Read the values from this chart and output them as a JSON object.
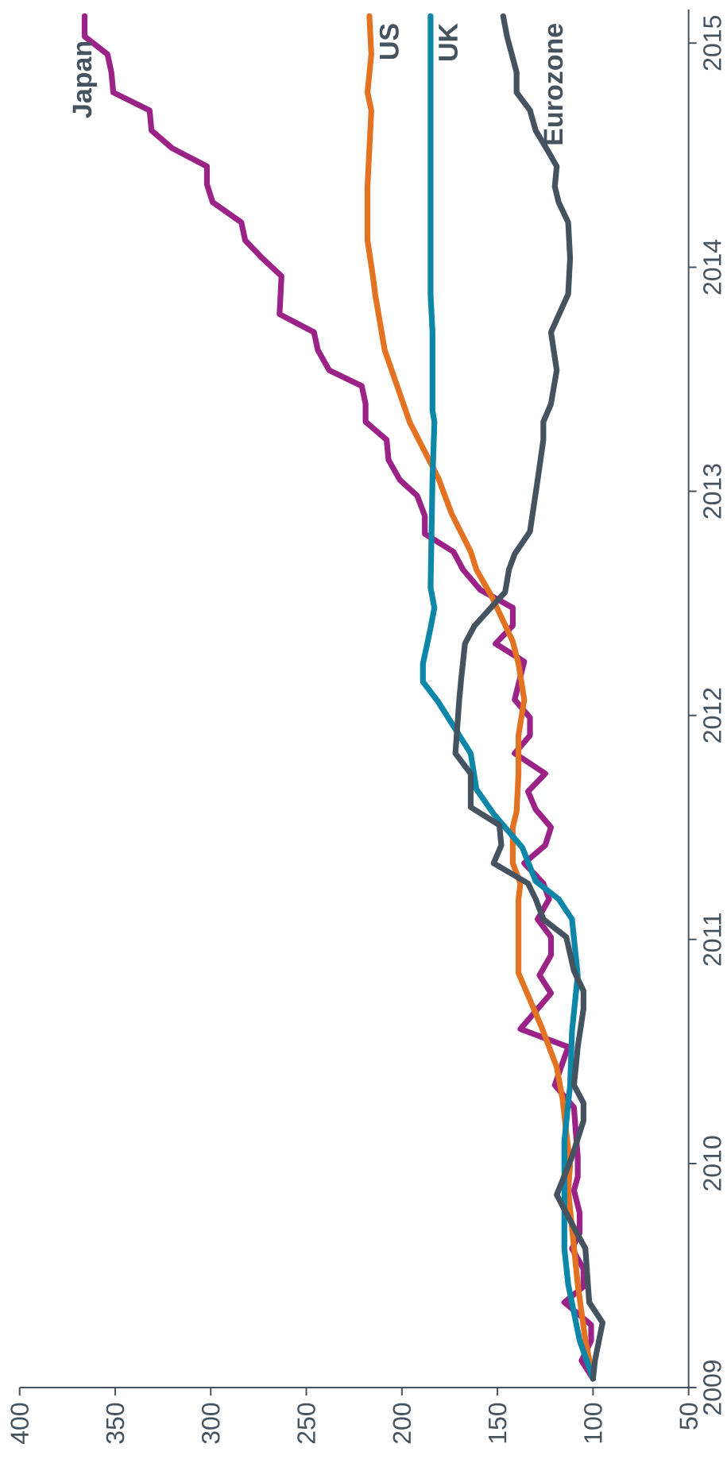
{
  "chart_data": {
    "type": "line",
    "xlim": [
      400,
      50
    ],
    "xticks": [
      400,
      350,
      300,
      250,
      200,
      150,
      100,
      50
    ],
    "ylim": [
      2009,
      2015.15
    ],
    "yticks": [
      2009,
      2010,
      2011,
      2012,
      2013,
      2014,
      2015
    ],
    "series": [
      {
        "name": "Japan",
        "color": "#9b2387",
        "values": [
          2009.04,
          2009.12,
          2009.21,
          2009.28,
          2009.38,
          2009.45,
          2009.53,
          2009.62,
          2009.69,
          2009.78,
          2009.88,
          2009.94,
          2010.03,
          2010.25,
          2010.35,
          2010.52,
          2010.6,
          2010.76,
          2010.84,
          2010.93,
          2011.01,
          2011.09,
          2011.18,
          2011.25,
          2011.34,
          2011.42,
          2011.5,
          2011.58,
          2011.66,
          2011.74,
          2011.83,
          2011.91,
          2011.99,
          2012.07,
          2012.24,
          2012.32,
          2012.4,
          2012.48,
          2012.56,
          2012.65,
          2012.73,
          2012.81,
          2012.89,
          2012.98,
          2013.05,
          2013.14,
          2013.23,
          2013.31,
          2013.39,
          2013.47,
          2013.54,
          2013.63,
          2013.71,
          2013.79,
          2013.96,
          2014.04,
          2014.12,
          2014.2,
          2014.29,
          2014.37,
          2014.45,
          2014.53,
          2014.61,
          2014.7,
          2014.78,
          2014.87,
          2014.95,
          2015.03,
          2015.12
        ],
        "x": [
          100,
          106,
          101,
          101,
          115,
          105,
          105,
          111,
          107,
          107,
          110,
          108,
          108,
          110,
          120,
          113,
          138,
          122,
          128,
          122,
          122,
          129,
          123,
          126,
          136,
          125,
          122,
          130,
          134,
          125,
          141,
          133,
          133,
          141,
          136,
          151,
          142,
          142,
          159,
          168,
          173,
          188,
          188,
          192,
          201,
          207,
          208,
          219,
          219,
          221,
          238,
          244,
          246,
          264,
          263,
          273,
          282,
          284,
          299,
          302,
          302,
          320,
          331,
          332,
          351,
          352,
          354,
          366,
          366
        ]
      },
      {
        "name": "US",
        "color": "#e37222",
        "values": [
          2009.04,
          2009.21,
          2009.46,
          2009.88,
          2009.99,
          2010.29,
          2010.43,
          2010.61,
          2010.85,
          2011.18,
          2011.25,
          2011.34,
          2011.5,
          2011.57,
          2011.74,
          2011.91,
          2012.07,
          2012.23,
          2012.33,
          2012.53,
          2012.65,
          2012.73,
          2012.9,
          2013.06,
          2013.21,
          2013.31,
          2013.36,
          2013.63,
          2013.88,
          2013.95,
          2014.12,
          2014.36,
          2014.7,
          2014.78,
          2014.95,
          2015.12
        ],
        "x": [
          100,
          104,
          108,
          113,
          112,
          116,
          119,
          127,
          139,
          139,
          138,
          142,
          142,
          140,
          139,
          139,
          136,
          139,
          142,
          153,
          161,
          164,
          174,
          181,
          190,
          196,
          198,
          209,
          214,
          215,
          218,
          218,
          216,
          218,
          216,
          217
        ]
      },
      {
        "name": "UK",
        "color": "#0d86a8",
        "values": [
          2009.04,
          2009.21,
          2009.46,
          2009.62,
          2010.1,
          2010.35,
          2010.59,
          2010.84,
          2011.09,
          2011.18,
          2011.26,
          2011.41,
          2011.48,
          2011.56,
          2011.67,
          2011.83,
          2012.06,
          2012.15,
          2012.23,
          2012.39,
          2012.48,
          2012.57,
          2013.05,
          2013.31,
          2013.36,
          2013.71,
          2013.88,
          2015.12
        ],
        "x": [
          100,
          107,
          113,
          115,
          115,
          112,
          111,
          108,
          111,
          118,
          130,
          137,
          144,
          152,
          161,
          164,
          181,
          189,
          189,
          185,
          183,
          185,
          184,
          183,
          184,
          184,
          185,
          185
        ]
      },
      {
        "name": "Eurozone",
        "color": "#44535f",
        "values": [
          2009.04,
          2009.12,
          2009.29,
          2009.38,
          2009.62,
          2009.73,
          2009.86,
          2010.03,
          2010.19,
          2010.27,
          2010.35,
          2010.43,
          2010.52,
          2010.69,
          2010.77,
          2010.86,
          2011.01,
          2011.09,
          2011.18,
          2011.25,
          2011.34,
          2011.42,
          2011.51,
          2011.59,
          2011.74,
          2011.83,
          2012.07,
          2012.16,
          2012.32,
          2012.4,
          2012.55,
          2012.65,
          2012.72,
          2012.82,
          2013.05,
          2013.23,
          2013.31,
          2013.39,
          2013.54,
          2013.71,
          2013.88,
          2014.04,
          2014.2,
          2014.29,
          2014.36,
          2014.45,
          2014.51,
          2014.61,
          2014.7,
          2014.78,
          2014.87,
          2015.03,
          2015.12
        ],
        "x": [
          100,
          99,
          95,
          102,
          104,
          111,
          119,
          111,
          105,
          105,
          110,
          109,
          108,
          105,
          105,
          110,
          114,
          126,
          130,
          134,
          152,
          148,
          149,
          164,
          164,
          172,
          170,
          169,
          167,
          162,
          146,
          144,
          141,
          133,
          129,
          126,
          126,
          122,
          119,
          122,
          113,
          112,
          113,
          118,
          120,
          119,
          123,
          130,
          133,
          140,
          140,
          145,
          147
        ]
      }
    ]
  }
}
